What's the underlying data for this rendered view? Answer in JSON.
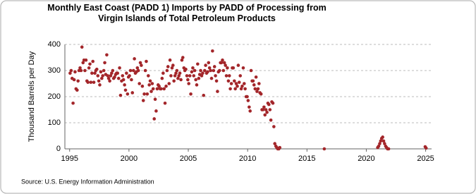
{
  "chart_data": {
    "type": "scatter",
    "title": "Monthly East Coast (PADD 1) Imports by PADD of Processing from Virgin Islands of Total Petroleum Products",
    "y_label": "Thousand Barrels per Day",
    "source": "Source: U.S. Energy Information Administration",
    "color": "#a3262a",
    "grid": true,
    "xlim": [
      1994.6,
      2025.5
    ],
    "ylim": [
      0,
      400
    ],
    "xticks": [
      1995,
      2000,
      2005,
      2010,
      2015,
      2020,
      2025
    ],
    "yticks": [
      0,
      100,
      200,
      300,
      400
    ],
    "x": [
      1995.04,
      1995.13,
      1995.21,
      1995.29,
      1995.38,
      1995.46,
      1995.54,
      1995.63,
      1995.71,
      1995.79,
      1995.88,
      1995.96,
      1996.04,
      1996.13,
      1996.21,
      1996.29,
      1996.38,
      1996.46,
      1996.54,
      1996.63,
      1996.71,
      1996.79,
      1996.88,
      1996.96,
      1997.04,
      1997.13,
      1997.21,
      1997.29,
      1997.38,
      1997.46,
      1997.54,
      1997.63,
      1997.71,
      1997.79,
      1997.88,
      1997.96,
      1998.04,
      1998.13,
      1998.21,
      1998.29,
      1998.38,
      1998.46,
      1998.54,
      1998.63,
      1998.71,
      1998.79,
      1998.88,
      1998.96,
      1999.04,
      1999.13,
      1999.21,
      1999.29,
      1999.38,
      1999.46,
      1999.54,
      1999.63,
      1999.71,
      1999.79,
      1999.88,
      1999.96,
      2000.04,
      2000.13,
      2000.21,
      2000.29,
      2000.38,
      2000.46,
      2000.54,
      2000.63,
      2000.71,
      2000.79,
      2000.88,
      2000.96,
      2001.04,
      2001.13,
      2001.21,
      2001.29,
      2001.38,
      2001.46,
      2001.54,
      2001.63,
      2001.71,
      2001.79,
      2001.88,
      2001.96,
      2002.04,
      2002.13,
      2002.21,
      2002.29,
      2002.38,
      2002.46,
      2002.54,
      2002.63,
      2002.71,
      2002.79,
      2002.88,
      2002.96,
      2003.04,
      2003.13,
      2003.21,
      2003.29,
      2003.38,
      2003.46,
      2003.54,
      2003.63,
      2003.71,
      2003.79,
      2003.88,
      2003.96,
      2004.04,
      2004.13,
      2004.21,
      2004.29,
      2004.38,
      2004.46,
      2004.54,
      2004.63,
      2004.71,
      2004.79,
      2004.88,
      2004.96,
      2005.04,
      2005.13,
      2005.21,
      2005.29,
      2005.38,
      2005.46,
      2005.54,
      2005.63,
      2005.71,
      2005.79,
      2005.88,
      2005.96,
      2006.04,
      2006.13,
      2006.21,
      2006.29,
      2006.38,
      2006.46,
      2006.54,
      2006.63,
      2006.71,
      2006.79,
      2006.88,
      2006.96,
      2007.04,
      2007.13,
      2007.21,
      2007.29,
      2007.38,
      2007.46,
      2007.54,
      2007.63,
      2007.71,
      2007.79,
      2007.88,
      2007.96,
      2008.04,
      2008.13,
      2008.21,
      2008.29,
      2008.38,
      2008.46,
      2008.54,
      2008.63,
      2008.71,
      2008.79,
      2008.88,
      2008.96,
      2009.04,
      2009.13,
      2009.21,
      2009.29,
      2009.38,
      2009.46,
      2009.54,
      2009.63,
      2009.71,
      2009.79,
      2009.88,
      2009.96,
      2010.04,
      2010.13,
      2010.21,
      2010.29,
      2010.38,
      2010.46,
      2010.54,
      2010.63,
      2010.71,
      2010.79,
      2010.88,
      2010.96,
      2011.04,
      2011.13,
      2011.21,
      2011.29,
      2011.38,
      2011.46,
      2011.54,
      2011.63,
      2011.71,
      2011.79,
      2011.88,
      2011.96,
      2012.04,
      2012.13,
      2012.21,
      2012.29,
      2012.38,
      2012.46,
      2012.54,
      2012.63,
      2012.71,
      2016.46,
      2020.96,
      2021.04,
      2021.13,
      2021.21,
      2021.29,
      2021.38,
      2021.46,
      2021.54,
      2021.63,
      2021.71,
      2021.79,
      2021.88,
      2024.96,
      2025.04
    ],
    "values": [
      290,
      300,
      270,
      175,
      265,
      295,
      230,
      225,
      260,
      300,
      310,
      300,
      390,
      330,
      340,
      300,
      340,
      260,
      255,
      310,
      325,
      255,
      290,
      335,
      255,
      290,
      300,
      305,
      280,
      260,
      245,
      295,
      270,
      280,
      300,
      330,
      285,
      360,
      280,
      270,
      260,
      280,
      290,
      300,
      270,
      275,
      285,
      290,
      290,
      270,
      310,
      205,
      260,
      280,
      265,
      245,
      225,
      290,
      210,
      275,
      280,
      300,
      265,
      215,
      300,
      345,
      290,
      295,
      310,
      300,
      250,
      330,
      320,
      240,
      185,
      210,
      300,
      335,
      210,
      280,
      245,
      260,
      220,
      250,
      230,
      115,
      190,
      145,
      230,
      245,
      240,
      230,
      230,
      270,
      290,
      230,
      175,
      240,
      300,
      315,
      250,
      340,
      280,
      310,
      320,
      260,
      280,
      290,
      300,
      270,
      280,
      290,
      265,
      340,
      350,
      310,
      300,
      305,
      280,
      265,
      250,
      280,
      210,
      295,
      310,
      280,
      300,
      265,
      245,
      325,
      270,
      285,
      300,
      280,
      290,
      205,
      300,
      320,
      290,
      295,
      330,
      310,
      300,
      270,
      375,
      300,
      315,
      280,
      260,
      220,
      295,
      300,
      330,
      330,
      340,
      300,
      330,
      320,
      280,
      310,
      260,
      280,
      230,
      250,
      310,
      310,
      260,
      230,
      250,
      240,
      320,
      255,
      280,
      230,
      240,
      310,
      250,
      230,
      200,
      200,
      185,
      160,
      145,
      300,
      260,
      260,
      245,
      230,
      275,
      220,
      230,
      250,
      215,
      210,
      150,
      150,
      160,
      130,
      150,
      140,
      175,
      170,
      150,
      110,
      180,
      175,
      85,
      20,
      10,
      5,
      0,
      0,
      5,
      0,
      5,
      10,
      20,
      30,
      40,
      45,
      30,
      20,
      10,
      5,
      0,
      0,
      8,
      3
    ]
  }
}
